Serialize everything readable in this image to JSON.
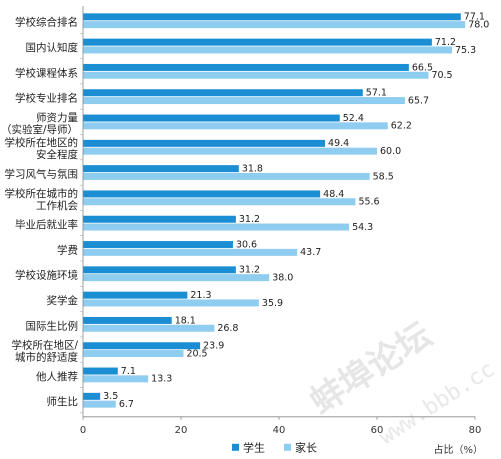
{
  "chart_data": {
    "type": "bar",
    "orientation": "horizontal",
    "categories": [
      [
        "学校综合排名"
      ],
      [
        "国内认知度"
      ],
      [
        "学校课程体系"
      ],
      [
        "学校专业排名"
      ],
      [
        "师资力量",
        "（实验室/导师）"
      ],
      [
        "学校所在地区的",
        "安全程度"
      ],
      [
        "学习风气与氛围"
      ],
      [
        "学校所在城市的",
        "工作机会"
      ],
      [
        "毕业后就业率"
      ],
      [
        "学费"
      ],
      [
        "学校设施环境"
      ],
      [
        "奖学金"
      ],
      [
        "国际生比例"
      ],
      [
        "学校所在地区/",
        "城市的舒适度"
      ],
      [
        "他人推荐"
      ],
      [
        "师生比"
      ]
    ],
    "series": [
      {
        "name": "学生",
        "color": "#1b8ed3",
        "values": [
          77.1,
          71.2,
          66.5,
          57.1,
          52.4,
          49.4,
          31.8,
          48.4,
          31.2,
          30.6,
          31.2,
          21.3,
          18.1,
          23.9,
          7.1,
          3.5
        ]
      },
      {
        "name": "家长",
        "color": "#8fcdf0",
        "values": [
          78.0,
          75.3,
          70.5,
          65.7,
          62.2,
          60.0,
          58.5,
          55.6,
          54.3,
          43.7,
          38.0,
          35.9,
          26.8,
          20.5,
          13.3,
          6.7
        ]
      }
    ],
    "xlim": [
      0,
      80
    ],
    "xticks": [
      "0",
      "20",
      "40",
      "60",
      "80"
    ],
    "xlabel": "占比（%）",
    "legend_position": "bottom"
  },
  "watermark": {
    "main": "蚌埠论坛",
    "url": "www.bbb.cc"
  }
}
